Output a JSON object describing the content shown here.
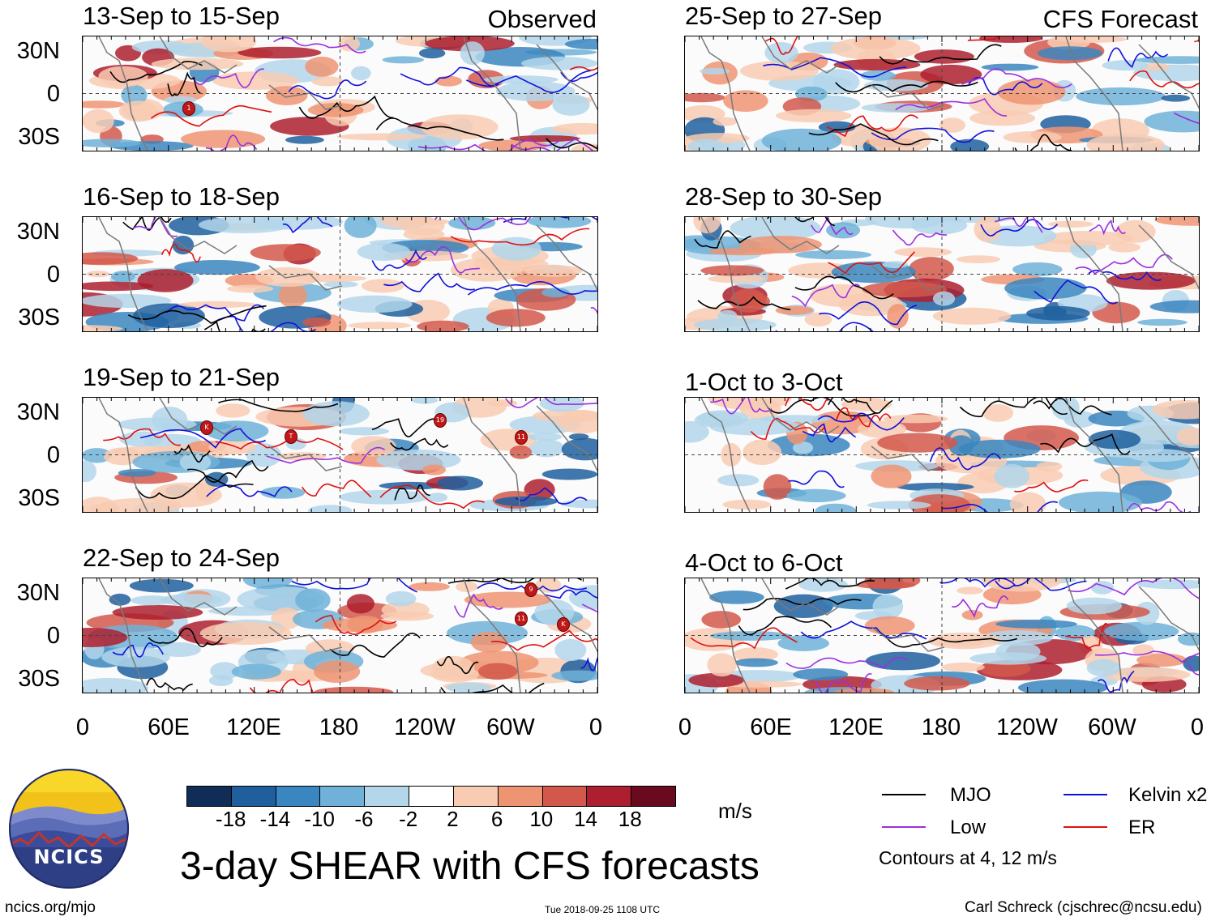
{
  "header": {
    "left_label": "Observed",
    "right_label": "CFS Forecast"
  },
  "panels": {
    "left": [
      {
        "title": "13-Sep to 15-Sep",
        "markers": [
          "1"
        ]
      },
      {
        "title": "16-Sep to 18-Sep",
        "markers": []
      },
      {
        "title": "19-Sep to 21-Sep",
        "markers": [
          "K",
          "T",
          "19",
          "11"
        ]
      },
      {
        "title": "22-Sep to 24-Sep",
        "markers": [
          "9",
          "11",
          "K"
        ]
      }
    ],
    "right": [
      {
        "title": "25-Sep to 27-Sep"
      },
      {
        "title": "28-Sep to 30-Sep"
      },
      {
        "title": "1-Oct to 3-Oct"
      },
      {
        "title": "4-Oct to 6-Oct"
      }
    ]
  },
  "lat_labels": [
    "30N",
    "0",
    "30S"
  ],
  "lon_labels": [
    "0",
    "60E",
    "120E",
    "180",
    "120W",
    "60W",
    "0"
  ],
  "colorbar": {
    "colors": [
      "#0f2d57",
      "#1f5f9e",
      "#3a86c0",
      "#6fb1d8",
      "#b3d6ea",
      "#ffffff",
      "#f8cbb3",
      "#ee9472",
      "#d2584b",
      "#ad1f2e",
      "#6a0a1e"
    ],
    "labels": [
      "-18",
      "-14",
      "-10",
      "-6",
      "-2",
      "2",
      "6",
      "10",
      "14",
      "18"
    ],
    "unit": "m/s"
  },
  "legend": {
    "items": [
      {
        "label": "MJO",
        "color": "#000000"
      },
      {
        "label": "Kelvin x2",
        "color": "#1010dd"
      },
      {
        "label": "Low",
        "color": "#9b30e0"
      },
      {
        "label": "ER",
        "color": "#e01010"
      }
    ],
    "note": "Contours at 4, 12 m/s"
  },
  "footer": {
    "main_title": "3-day SHEAR with CFS forecasts",
    "logo_text": "NCICS",
    "url": "ncics.org/mjo",
    "timestamp": "Tue 2018-09-25 1108 UTC",
    "credit": "Carl Schreck (cjschrec@ncsu.edu)"
  }
}
